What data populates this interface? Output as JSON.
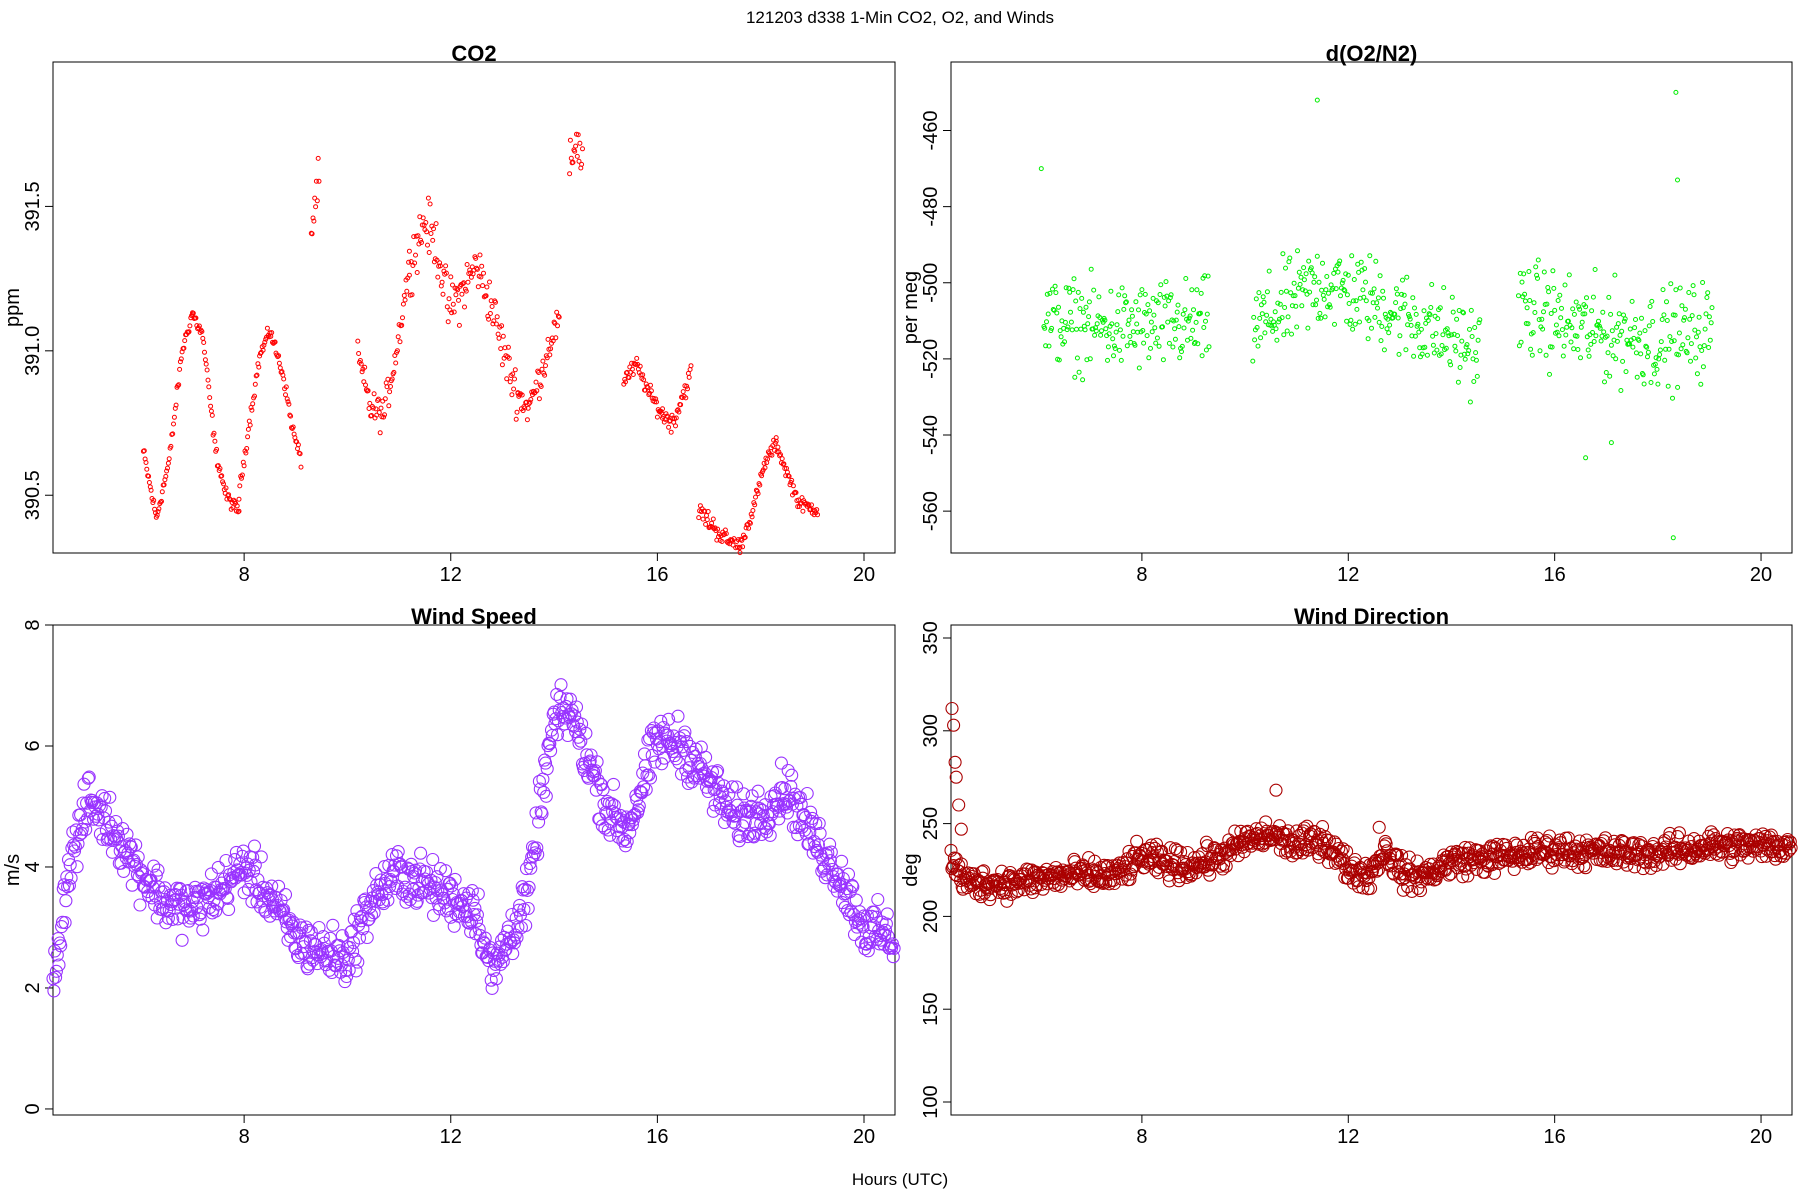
{
  "figure": {
    "title": "121203   d338   1-Min CO2, O2, and Winds",
    "xlabel": "Hours (UTC)"
  },
  "chart_data": [
    {
      "id": "co2",
      "type": "scatter",
      "title": "CO2",
      "ylabel": "ppm",
      "xlim": [
        4.3,
        20.6
      ],
      "ylim": [
        390.3,
        392.0
      ],
      "xticks": [
        8,
        12,
        16,
        20
      ],
      "yticks": [
        390.5,
        391.0,
        391.5
      ],
      "ytick_labels": [
        "390.5",
        "391.0",
        "391.5"
      ],
      "color": "#ff0000",
      "marker_size": 2,
      "segments": [
        {
          "x0": 6.05,
          "x1": 7.0,
          "anchors": [
            [
              6.05,
              390.65
            ],
            [
              6.3,
              390.42
            ],
            [
              6.55,
              390.62
            ],
            [
              6.8,
              391.0
            ],
            [
              7.0,
              391.13
            ]
          ],
          "noise": 0.02
        },
        {
          "x0": 7.0,
          "x1": 7.9,
          "anchors": [
            [
              7.0,
              391.13
            ],
            [
              7.2,
              391.05
            ],
            [
              7.45,
              390.65
            ],
            [
              7.65,
              390.5
            ],
            [
              7.85,
              390.45
            ]
          ],
          "noise": 0.02
        },
        {
          "x0": 7.9,
          "x1": 8.5,
          "anchors": [
            [
              7.9,
              390.5
            ],
            [
              8.1,
              390.75
            ],
            [
              8.3,
              390.98
            ],
            [
              8.5,
              391.07
            ]
          ],
          "noise": 0.02
        },
        {
          "x0": 8.5,
          "x1": 9.1,
          "anchors": [
            [
              8.5,
              391.07
            ],
            [
              8.75,
              390.92
            ],
            [
              8.95,
              390.72
            ],
            [
              9.1,
              390.62
            ]
          ],
          "noise": 0.02
        },
        {
          "x0": 9.3,
          "x1": 9.45,
          "anchors": [
            [
              9.3,
              391.4
            ],
            [
              9.4,
              391.55
            ],
            [
              9.45,
              391.6
            ]
          ],
          "noise": 0.06
        },
        {
          "x0": 10.2,
          "x1": 11.2,
          "anchors": [
            [
              10.2,
              390.98
            ],
            [
              10.45,
              390.8
            ],
            [
              10.7,
              390.78
            ],
            [
              10.95,
              391.0
            ],
            [
              11.2,
              391.3
            ]
          ],
          "noise": 0.05
        },
        {
          "x0": 11.2,
          "x1": 12.2,
          "anchors": [
            [
              11.2,
              391.3
            ],
            [
              11.5,
              391.45
            ],
            [
              11.75,
              391.35
            ],
            [
              11.95,
              391.15
            ],
            [
              12.2,
              391.2
            ]
          ],
          "noise": 0.08
        },
        {
          "x0": 12.2,
          "x1": 13.3,
          "anchors": [
            [
              12.2,
              391.2
            ],
            [
              12.5,
              391.3
            ],
            [
              12.8,
              391.15
            ],
            [
              13.1,
              390.95
            ],
            [
              13.3,
              390.85
            ]
          ],
          "noise": 0.07
        },
        {
          "x0": 13.3,
          "x1": 14.1,
          "anchors": [
            [
              13.3,
              390.85
            ],
            [
              13.5,
              390.8
            ],
            [
              13.75,
              390.92
            ],
            [
              13.95,
              391.05
            ],
            [
              14.1,
              391.1
            ]
          ],
          "noise": 0.05
        },
        {
          "x0": 14.3,
          "x1": 14.55,
          "anchors": [
            [
              14.3,
              391.6
            ],
            [
              14.42,
              391.75
            ],
            [
              14.55,
              391.65
            ]
          ],
          "noise": 0.08
        },
        {
          "x0": 15.35,
          "x1": 16.1,
          "anchors": [
            [
              15.35,
              390.9
            ],
            [
              15.6,
              390.95
            ],
            [
              15.85,
              390.85
            ],
            [
              16.1,
              390.78
            ]
          ],
          "noise": 0.025
        },
        {
          "x0": 16.1,
          "x1": 16.65,
          "anchors": [
            [
              16.1,
              390.78
            ],
            [
              16.3,
              390.75
            ],
            [
              16.5,
              390.85
            ],
            [
              16.65,
              390.92
            ]
          ],
          "noise": 0.03
        },
        {
          "x0": 16.8,
          "x1": 17.6,
          "anchors": [
            [
              16.8,
              390.45
            ],
            [
              17.05,
              390.4
            ],
            [
              17.3,
              390.35
            ],
            [
              17.6,
              390.32
            ]
          ],
          "noise": 0.03
        },
        {
          "x0": 17.6,
          "x1": 18.3,
          "anchors": [
            [
              17.6,
              390.32
            ],
            [
              17.85,
              390.45
            ],
            [
              18.1,
              390.62
            ],
            [
              18.3,
              390.68
            ]
          ],
          "noise": 0.02
        },
        {
          "x0": 18.3,
          "x1": 19.1,
          "anchors": [
            [
              18.3,
              390.68
            ],
            [
              18.5,
              390.58
            ],
            [
              18.75,
              390.47
            ],
            [
              19.1,
              390.45
            ]
          ],
          "noise": 0.02
        }
      ]
    },
    {
      "id": "o2",
      "type": "scatter",
      "title": "d(O2/N2)",
      "ylabel": "per meg",
      "xlim": [
        4.3,
        20.6
      ],
      "ylim": [
        -571,
        -442
      ],
      "xticks": [
        8,
        12,
        16,
        20
      ],
      "yticks": [
        -460,
        -480,
        -500,
        -520,
        -540,
        -560
      ],
      "ytick_labels": [
        "-460",
        "-480",
        "-500",
        "-520",
        "-540",
        "-560"
      ],
      "color": "#00ee00",
      "marker_size": 2,
      "segments": [
        {
          "x0": 6.1,
          "x1": 9.3,
          "anchors": [
            [
              6.1,
              -510
            ],
            [
              7.5,
              -512
            ],
            [
              9.3,
              -511
            ]
          ],
          "noise": 10
        },
        {
          "x0": 10.15,
          "x1": 14.55,
          "anchors": [
            [
              10.15,
              -512
            ],
            [
              11.5,
              -500
            ],
            [
              12.5,
              -505
            ],
            [
              14.55,
              -518
            ]
          ],
          "noise": 10
        },
        {
          "x0": 15.3,
          "x1": 19.05,
          "anchors": [
            [
              15.3,
              -506
            ],
            [
              16.5,
              -512
            ],
            [
              18.0,
              -515
            ],
            [
              19.05,
              -512
            ]
          ],
          "noise": 11
        }
      ],
      "outliers": [
        [
          6.05,
          -470
        ],
        [
          11.4,
          -452
        ],
        [
          18.35,
          -450
        ],
        [
          18.38,
          -473
        ],
        [
          18.3,
          -567
        ],
        [
          17.1,
          -542
        ],
        [
          16.6,
          -546
        ]
      ]
    },
    {
      "id": "wind_speed",
      "type": "scatter",
      "title": "Wind Speed",
      "ylabel": "m/s",
      "xlim": [
        4.3,
        20.6
      ],
      "ylim": [
        -0.1,
        8.0
      ],
      "xticks": [
        8,
        12,
        16,
        20
      ],
      "yticks": [
        0,
        2,
        4,
        6,
        8
      ],
      "ytick_labels": [
        "0",
        "2",
        "4",
        "6",
        "8"
      ],
      "color": "#9933ff",
      "marker_size": 6,
      "segments": [
        {
          "x0": 4.3,
          "x1": 20.6,
          "anchors": [
            [
              4.3,
              2.0
            ],
            [
              4.6,
              4.0
            ],
            [
              5.0,
              5.1
            ],
            [
              5.5,
              4.6
            ],
            [
              6.0,
              3.9
            ],
            [
              6.5,
              3.4
            ],
            [
              7.0,
              3.3
            ],
            [
              7.5,
              3.6
            ],
            [
              8.0,
              4.0
            ],
            [
              8.5,
              3.5
            ],
            [
              9.0,
              2.8
            ],
            [
              9.5,
              2.6
            ],
            [
              10.0,
              2.5
            ],
            [
              10.5,
              3.5
            ],
            [
              11.0,
              3.9
            ],
            [
              11.5,
              3.7
            ],
            [
              12.0,
              3.5
            ],
            [
              12.5,
              3.3
            ],
            [
              12.8,
              2.2
            ],
            [
              13.2,
              3.0
            ],
            [
              13.5,
              3.5
            ],
            [
              13.7,
              4.8
            ],
            [
              14.0,
              6.4
            ],
            [
              14.3,
              6.6
            ],
            [
              14.6,
              5.9
            ],
            [
              15.0,
              5.0
            ],
            [
              15.4,
              4.6
            ],
            [
              15.7,
              5.3
            ],
            [
              16.0,
              6.1
            ],
            [
              16.5,
              6.0
            ],
            [
              17.0,
              5.4
            ],
            [
              17.5,
              4.8
            ],
            [
              18.0,
              4.9
            ],
            [
              18.5,
              5.3
            ],
            [
              19.0,
              4.5
            ],
            [
              19.5,
              3.9
            ],
            [
              20.0,
              3.0
            ],
            [
              20.6,
              2.8
            ]
          ],
          "noise": 0.38
        }
      ]
    },
    {
      "id": "wind_direction",
      "type": "scatter",
      "title": "Wind Direction",
      "ylabel": "deg",
      "xlim": [
        4.3,
        20.6
      ],
      "ylim": [
        93,
        357
      ],
      "xticks": [
        8,
        12,
        16,
        20
      ],
      "yticks": [
        100,
        150,
        200,
        250,
        300,
        350
      ],
      "ytick_labels": [
        "100",
        "150",
        "200",
        "250",
        "300",
        "350"
      ],
      "color": "#aa0000",
      "marker_size": 6,
      "segments": [
        {
          "x0": 4.3,
          "x1": 20.6,
          "anchors": [
            [
              4.3,
              230
            ],
            [
              4.6,
              218
            ],
            [
              5.5,
              218
            ],
            [
              6.5,
              222
            ],
            [
              7.5,
              222
            ],
            [
              8.0,
              232
            ],
            [
              8.5,
              228
            ],
            [
              9.0,
              228
            ],
            [
              9.5,
              232
            ],
            [
              10.0,
              240
            ],
            [
              10.5,
              244
            ],
            [
              11.0,
              238
            ],
            [
              11.5,
              242
            ],
            [
              12.0,
              226
            ],
            [
              12.4,
              222
            ],
            [
              12.7,
              236
            ],
            [
              13.1,
              222
            ],
            [
              13.5,
              222
            ],
            [
              14.0,
              230
            ],
            [
              15.0,
              232
            ],
            [
              16.0,
              236
            ],
            [
              17.0,
              234
            ],
            [
              18.0,
              234
            ],
            [
              19.0,
              238
            ],
            [
              20.0,
              238
            ],
            [
              20.6,
              238
            ]
          ],
          "noise": 7
        }
      ],
      "outliers": [
        [
          4.32,
          312
        ],
        [
          4.35,
          303
        ],
        [
          4.38,
          283
        ],
        [
          4.4,
          275
        ],
        [
          4.45,
          260
        ],
        [
          4.5,
          247
        ],
        [
          10.6,
          268
        ],
        [
          12.6,
          248
        ]
      ]
    }
  ]
}
